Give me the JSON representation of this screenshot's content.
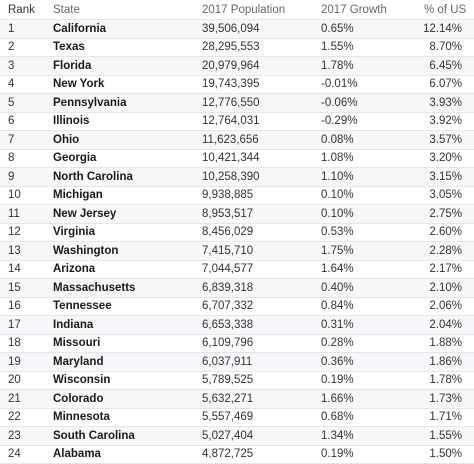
{
  "table": {
    "headers": [
      "Rank",
      "State",
      "2017 Population",
      "2017 Growth",
      "% of US"
    ],
    "rows": [
      {
        "rank": "1",
        "state": "California",
        "population": "39,506,094",
        "growth": "0.65%",
        "pct": "12.14%"
      },
      {
        "rank": "2",
        "state": "Texas",
        "population": "28,295,553",
        "growth": "1.55%",
        "pct": "8.70%"
      },
      {
        "rank": "3",
        "state": "Florida",
        "population": "20,979,964",
        "growth": "1.78%",
        "pct": "6.45%"
      },
      {
        "rank": "4",
        "state": "New York",
        "population": "19,743,395",
        "growth": "-0.01%",
        "pct": "6.07%"
      },
      {
        "rank": "5",
        "state": "Pennsylvania",
        "population": "12,776,550",
        "growth": "-0.06%",
        "pct": "3.93%"
      },
      {
        "rank": "6",
        "state": "Illinois",
        "population": "12,764,031",
        "growth": "-0.29%",
        "pct": "3.92%"
      },
      {
        "rank": "7",
        "state": "Ohio",
        "population": "11,623,656",
        "growth": "0.08%",
        "pct": "3.57%"
      },
      {
        "rank": "8",
        "state": "Georgia",
        "population": "10,421,344",
        "growth": "1.08%",
        "pct": "3.20%"
      },
      {
        "rank": "9",
        "state": "North Carolina",
        "population": "10,258,390",
        "growth": "1.10%",
        "pct": "3.15%"
      },
      {
        "rank": "10",
        "state": "Michigan",
        "population": "9,938,885",
        "growth": "0.10%",
        "pct": "3.05%"
      },
      {
        "rank": "11",
        "state": "New Jersey",
        "population": "8,953,517",
        "growth": "0.10%",
        "pct": "2.75%"
      },
      {
        "rank": "12",
        "state": "Virginia",
        "population": "8,456,029",
        "growth": "0.53%",
        "pct": "2.60%"
      },
      {
        "rank": "13",
        "state": "Washington",
        "population": "7,415,710",
        "growth": "1.75%",
        "pct": "2.28%"
      },
      {
        "rank": "14",
        "state": "Arizona",
        "population": "7,044,577",
        "growth": "1.64%",
        "pct": "2.17%"
      },
      {
        "rank": "15",
        "state": "Massachusetts",
        "population": "6,839,318",
        "growth": "0.40%",
        "pct": "2.10%"
      },
      {
        "rank": "16",
        "state": "Tennessee",
        "population": "6,707,332",
        "growth": "0.84%",
        "pct": "2.06%"
      },
      {
        "rank": "17",
        "state": "Indiana",
        "population": "6,653,338",
        "growth": "0.31%",
        "pct": "2.04%"
      },
      {
        "rank": "18",
        "state": "Missouri",
        "population": "6,109,796",
        "growth": "0.28%",
        "pct": "1.88%"
      },
      {
        "rank": "19",
        "state": "Maryland",
        "population": "6,037,911",
        "growth": "0.36%",
        "pct": "1.86%"
      },
      {
        "rank": "20",
        "state": "Wisconsin",
        "population": "5,789,525",
        "growth": "0.19%",
        "pct": "1.78%"
      },
      {
        "rank": "21",
        "state": "Colorado",
        "population": "5,632,271",
        "growth": "1.66%",
        "pct": "1.73%"
      },
      {
        "rank": "22",
        "state": "Minnesota",
        "population": "5,557,469",
        "growth": "0.68%",
        "pct": "1.71%"
      },
      {
        "rank": "23",
        "state": "South Carolina",
        "population": "5,027,404",
        "growth": "1.34%",
        "pct": "1.55%"
      },
      {
        "rank": "24",
        "state": "Alabama",
        "population": "4,872,725",
        "growth": "0.19%",
        "pct": "1.50%"
      }
    ]
  }
}
